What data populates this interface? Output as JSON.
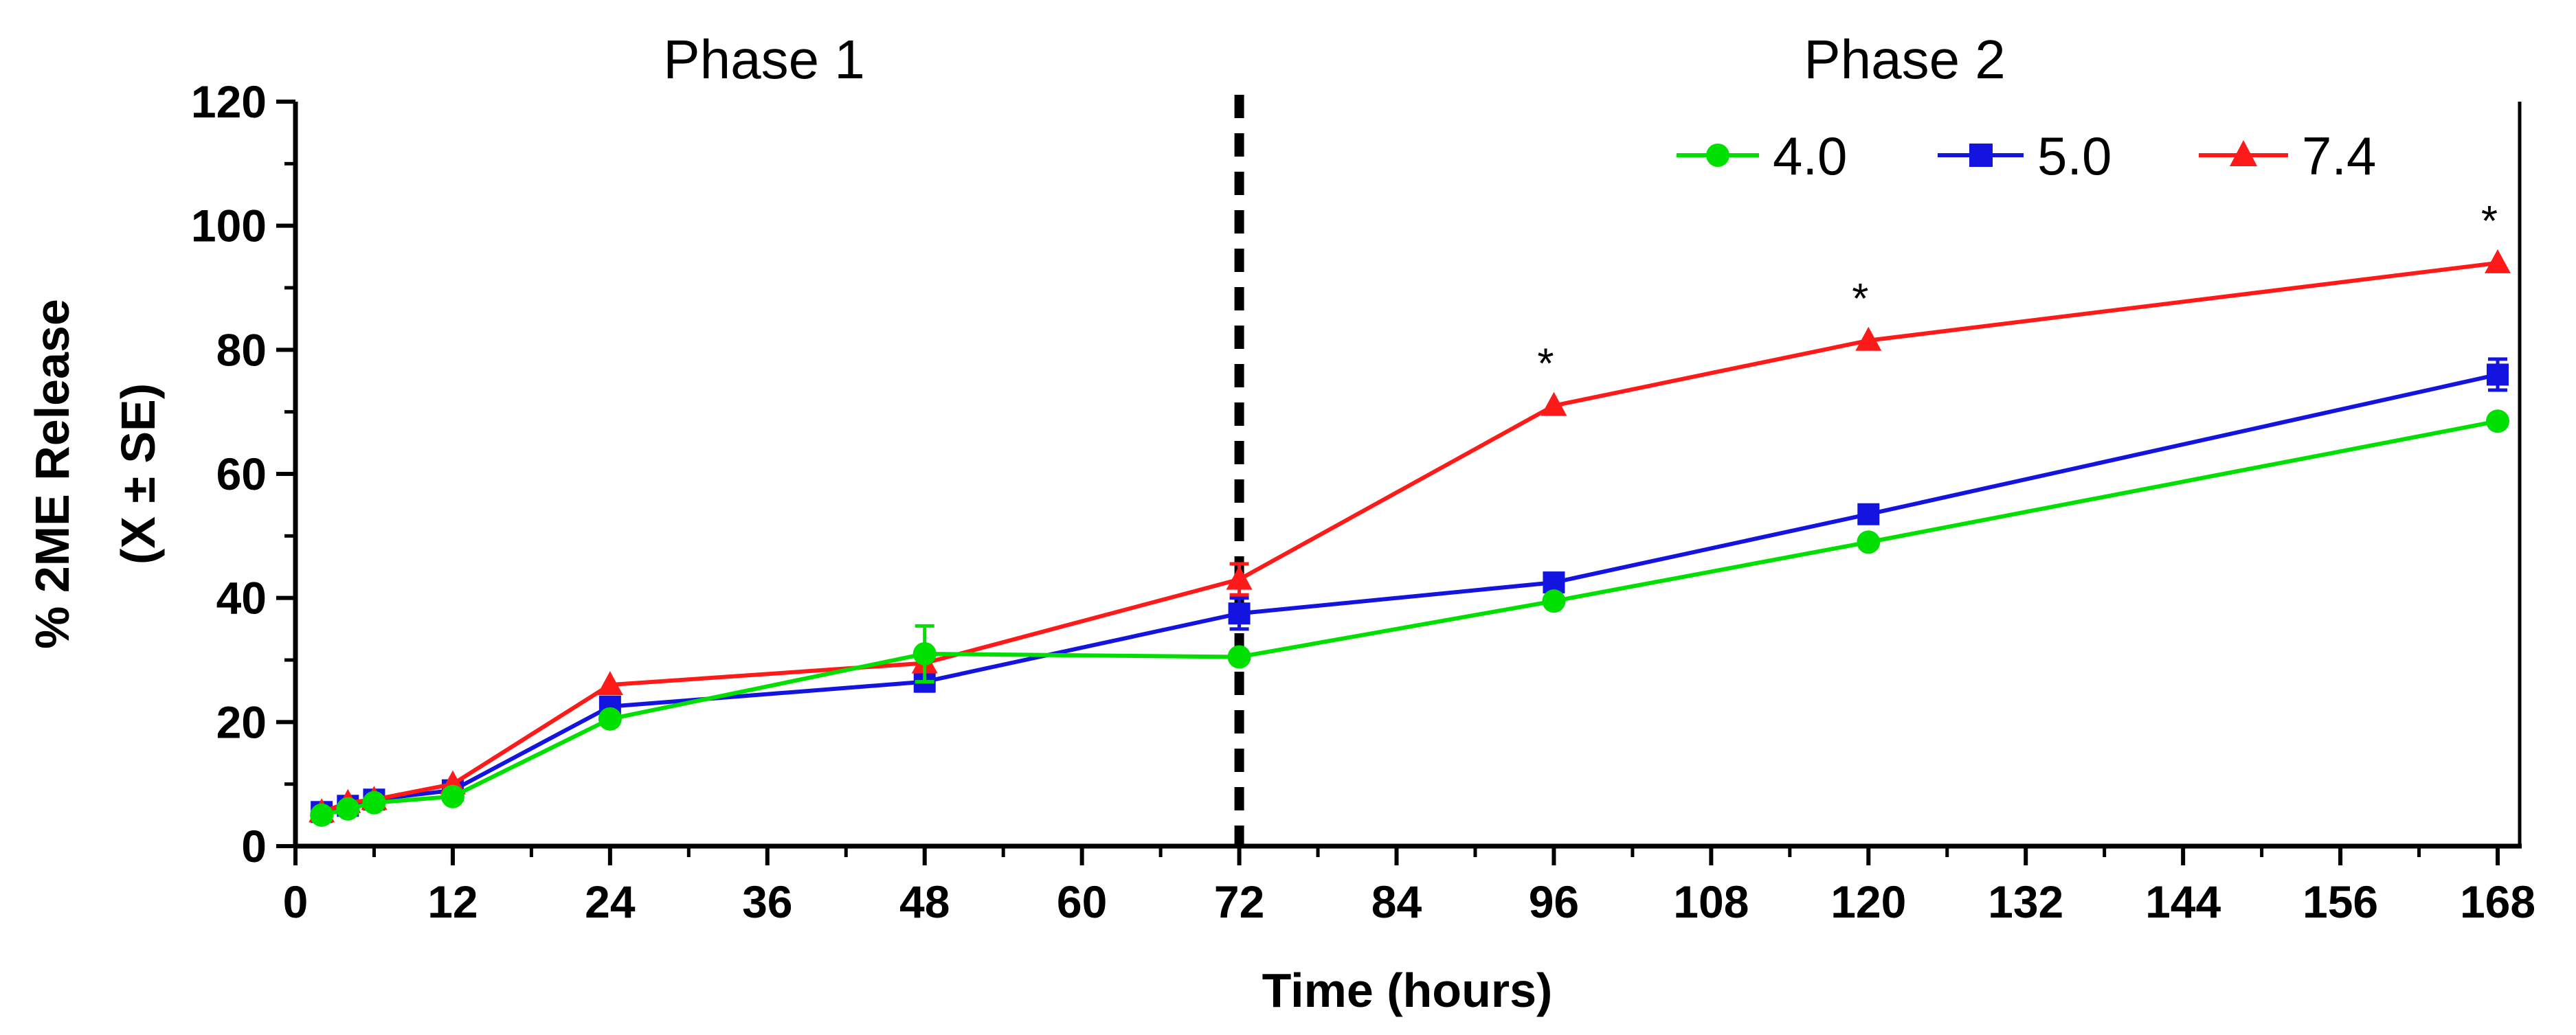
{
  "chart_data": {
    "type": "line",
    "title": "",
    "xlabel": "Time (hours)",
    "ylabel_line1": "% 2ME Release",
    "ylabel_line2": "(X ± SE)",
    "xlim": [
      0,
      168
    ],
    "ylim": [
      0,
      120
    ],
    "x_ticks": [
      0,
      12,
      24,
      36,
      48,
      60,
      72,
      84,
      96,
      108,
      120,
      132,
      144,
      156,
      168
    ],
    "y_ticks": [
      0,
      20,
      40,
      60,
      80,
      100,
      120
    ],
    "grid": false,
    "legend_position": "top-right",
    "phase_divider_x": 72,
    "phases": [
      {
        "label": "Phase 1",
        "center_x": 36
      },
      {
        "label": "Phase 2",
        "center_x": 126
      }
    ],
    "series": [
      {
        "name": "4.0",
        "color": "#00e000",
        "marker": "circle",
        "x": [
          2,
          4,
          6,
          12,
          24,
          48,
          72,
          96,
          120,
          168
        ],
        "y": [
          5,
          6,
          7,
          8,
          20.5,
          31,
          30.5,
          39.5,
          49,
          68.5
        ],
        "err": [
          0,
          0,
          0,
          0,
          0,
          4.5,
          0,
          0,
          0,
          0
        ]
      },
      {
        "name": "5.0",
        "color": "#1414e0",
        "marker": "square",
        "x": [
          2,
          4,
          6,
          12,
          24,
          48,
          72,
          96,
          120,
          168
        ],
        "y": [
          5.5,
          6.5,
          7.5,
          9,
          22.5,
          26.5,
          37.5,
          42.5,
          53.5,
          76
        ],
        "err": [
          0,
          0,
          1,
          0,
          0,
          1.5,
          2.5,
          0,
          0,
          2.5
        ]
      },
      {
        "name": "7.4",
        "color": "#ff1a1a",
        "marker": "triangle",
        "x": [
          2,
          4,
          6,
          12,
          24,
          48,
          72,
          96,
          120,
          168
        ],
        "y": [
          5.5,
          7,
          7.5,
          10,
          26,
          29.5,
          43,
          71,
          81.5,
          94
        ],
        "err": [
          0,
          0,
          0,
          0,
          0,
          0,
          2.5,
          0,
          0,
          0
        ]
      }
    ],
    "annotations": [
      {
        "text": "*",
        "x": 96,
        "y": 71
      },
      {
        "text": "*",
        "x": 120,
        "y": 81.5
      },
      {
        "text": "*",
        "x": 168,
        "y": 94
      }
    ]
  }
}
